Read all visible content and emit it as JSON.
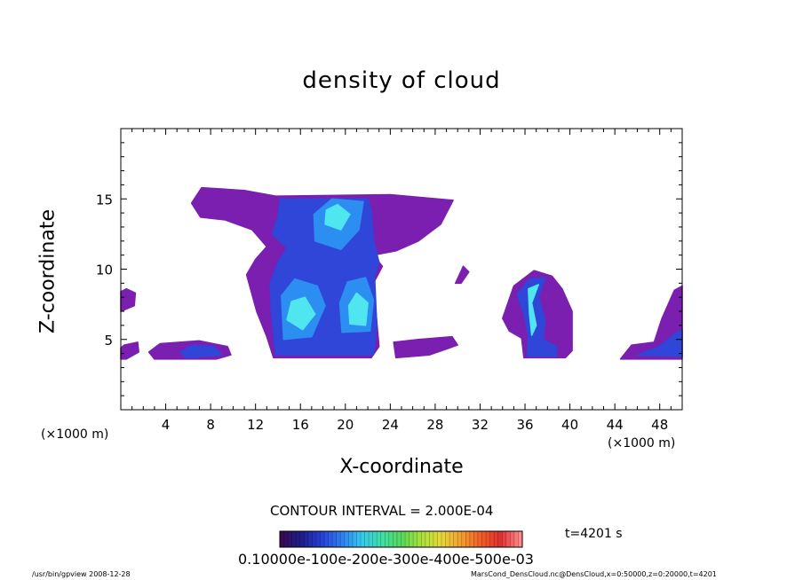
{
  "chart_data": {
    "type": "heatmap",
    "title": "density of cloud",
    "xlabel": "X-coordinate",
    "ylabel": "Z-coordinate",
    "x_unit_left": "(×1000 m)",
    "x_unit_right": "(×1000 m)",
    "xlim": [
      0,
      50
    ],
    "ylim": [
      0,
      20
    ],
    "x_ticks": [
      "4",
      "8",
      "12",
      "16",
      "20",
      "24",
      "28",
      "32",
      "36",
      "40",
      "44",
      "48"
    ],
    "x_tick_values": [
      4,
      8,
      12,
      16,
      20,
      24,
      28,
      32,
      36,
      40,
      44,
      48
    ],
    "y_ticks": [
      "5",
      "10",
      "15"
    ],
    "y_tick_values": [
      5,
      10,
      15
    ],
    "contour_interval": "CONTOUR INTERVAL = 2.000E-04",
    "time_label": "t=4201 s",
    "colorbar_labels": "0.10000e-100e-200e-300e-400e-500e-03",
    "footer_left": "/usr/bin/gpview   2008-12-28",
    "footer_right": "MarsCond_DensCloud.nc@DensCloud,x=0:50000,z=0:20000,t=4201",
    "colors": {
      "low": "#7a1fb0",
      "mid_low": "#2f46d8",
      "mid": "#2c8ef0",
      "high": "#4fe6f0",
      "colorbar": [
        "#3a0a52",
        "#1c1f8c",
        "#2740d6",
        "#2e7ef2",
        "#35c8ee",
        "#3fe0a8",
        "#56d85a",
        "#a8e03a",
        "#e6d83a",
        "#f2a030",
        "#f06028",
        "#e03030",
        "#ff8a8a"
      ]
    },
    "regions": [
      {
        "level": "low",
        "polygon": [
          [
            6.3,
            14.7
          ],
          [
            7.2,
            15.8
          ],
          [
            11,
            15.6
          ],
          [
            13.8,
            15.2
          ],
          [
            24,
            15.3
          ],
          [
            29.6,
            14.9
          ],
          [
            28.5,
            13.2
          ],
          [
            26.5,
            12
          ],
          [
            24.5,
            11.3
          ],
          [
            22.5,
            11
          ],
          [
            23.3,
            10.2
          ],
          [
            22.5,
            9
          ],
          [
            23,
            4.5
          ],
          [
            22.3,
            3.7
          ],
          [
            13.6,
            3.7
          ],
          [
            13,
            5.2
          ],
          [
            12.1,
            7
          ],
          [
            11.2,
            9.6
          ],
          [
            12,
            10.7
          ],
          [
            13,
            11.6
          ],
          [
            11.7,
            12.8
          ],
          [
            9.3,
            13.5
          ],
          [
            7.1,
            13.7
          ]
        ]
      },
      {
        "level": "mid_low",
        "polygon": [
          [
            13.8,
            3.9
          ],
          [
            22.5,
            3.9
          ],
          [
            22.8,
            6
          ],
          [
            22.6,
            9.5
          ],
          [
            23,
            10.5
          ],
          [
            22.5,
            12
          ],
          [
            22.3,
            14.2
          ],
          [
            22,
            15
          ],
          [
            14.2,
            15
          ],
          [
            14,
            13.8
          ],
          [
            13.5,
            12.5
          ],
          [
            14.8,
            11.5
          ],
          [
            14,
            10.5
          ],
          [
            13.3,
            9
          ],
          [
            13.4,
            7
          ]
        ]
      },
      {
        "level": "mid",
        "polygon": [
          [
            14.5,
            5
          ],
          [
            17,
            5.2
          ],
          [
            18.2,
            7.4
          ],
          [
            17.5,
            8.8
          ],
          [
            15.5,
            9.3
          ],
          [
            14.3,
            8.1
          ]
        ]
      },
      {
        "level": "high",
        "polygon": [
          [
            14.8,
            6.4
          ],
          [
            16.2,
            5.7
          ],
          [
            17.3,
            6.8
          ],
          [
            16.4,
            8
          ],
          [
            15.2,
            7.7
          ]
        ]
      },
      {
        "level": "mid",
        "polygon": [
          [
            19.7,
            5.5
          ],
          [
            22.2,
            5.6
          ],
          [
            22.5,
            7.8
          ],
          [
            21.8,
            9.4
          ],
          [
            20.2,
            9.1
          ],
          [
            19.5,
            7.6
          ]
        ]
      },
      {
        "level": "high",
        "polygon": [
          [
            20.4,
            6.1
          ],
          [
            21.8,
            6
          ],
          [
            22,
            7.6
          ],
          [
            21,
            8.3
          ],
          [
            20.3,
            7.4
          ]
        ]
      },
      {
        "level": "mid",
        "polygon": [
          [
            17.3,
            12
          ],
          [
            19.6,
            11.4
          ],
          [
            21.2,
            12.8
          ],
          [
            21.6,
            14.8
          ],
          [
            18.8,
            15
          ],
          [
            17.2,
            13.9
          ]
        ]
      },
      {
        "level": "high",
        "polygon": [
          [
            18.2,
            13.2
          ],
          [
            19.6,
            12.8
          ],
          [
            20.4,
            13.9
          ],
          [
            19.3,
            14.6
          ],
          [
            18.3,
            14.2
          ]
        ]
      },
      {
        "level": "low",
        "polygon": [
          [
            2.5,
            4.1
          ],
          [
            3.5,
            4.7
          ],
          [
            7,
            4.9
          ],
          [
            9.5,
            4.5
          ],
          [
            9.8,
            3.9
          ],
          [
            8.5,
            3.6
          ],
          [
            3,
            3.6
          ]
        ]
      },
      {
        "level": "mid_low",
        "polygon": [
          [
            5.3,
            4.1
          ],
          [
            6.4,
            4.6
          ],
          [
            8.3,
            4.5
          ],
          [
            9,
            3.9
          ],
          [
            5.8,
            3.7
          ]
        ]
      },
      {
        "level": "low",
        "polygon": [
          [
            0,
            7
          ],
          [
            1.2,
            7.4
          ],
          [
            1.3,
            8.3
          ],
          [
            0.5,
            8.6
          ],
          [
            0,
            8.4
          ]
        ]
      },
      {
        "level": "low",
        "polygon": [
          [
            0,
            3.6
          ],
          [
            0.5,
            3.6
          ],
          [
            1.6,
            4.1
          ],
          [
            1.5,
            4.8
          ],
          [
            0.3,
            4.6
          ],
          [
            0,
            4.4
          ]
        ]
      },
      {
        "level": "low",
        "polygon": [
          [
            24.5,
            3.7
          ],
          [
            27.5,
            3.9
          ],
          [
            30,
            4.6
          ],
          [
            29.5,
            5.2
          ],
          [
            26.5,
            5
          ],
          [
            24.3,
            4.8
          ]
        ]
      },
      {
        "level": "low",
        "polygon": [
          [
            34,
            6.5
          ],
          [
            35,
            8.8
          ],
          [
            36.8,
            9.9
          ],
          [
            38.4,
            9.5
          ],
          [
            39.3,
            8.6
          ],
          [
            40.2,
            7
          ],
          [
            40.2,
            4.2
          ],
          [
            39.6,
            3.7
          ],
          [
            35.9,
            3.7
          ],
          [
            35.7,
            5.1
          ],
          [
            34.6,
            5.6
          ]
        ]
      },
      {
        "level": "mid_low",
        "polygon": [
          [
            35.3,
            8.2
          ],
          [
            36.4,
            9.3
          ],
          [
            37.8,
            9.4
          ],
          [
            37.2,
            8
          ],
          [
            37.8,
            6.4
          ],
          [
            37.6,
            5
          ],
          [
            38.8,
            4.5
          ],
          [
            38.8,
            3.8
          ],
          [
            36.2,
            3.8
          ],
          [
            36.3,
            5.3
          ],
          [
            35.9,
            6.8
          ]
        ]
      },
      {
        "level": "high",
        "polygon": [
          [
            36.3,
            8.6
          ],
          [
            37.2,
            8.9
          ],
          [
            36.6,
            7.6
          ],
          [
            37,
            6
          ],
          [
            36.6,
            5.3
          ],
          [
            36.4,
            6.8
          ]
        ]
      },
      {
        "level": "low",
        "polygon": [
          [
            29.8,
            9
          ],
          [
            30.5,
            10.2
          ],
          [
            31,
            9.8
          ],
          [
            30.3,
            9
          ]
        ]
      },
      {
        "level": "low",
        "polygon": [
          [
            44.5,
            3.6
          ],
          [
            45.5,
            4.6
          ],
          [
            47.5,
            4.8
          ],
          [
            48.2,
            6.5
          ],
          [
            49.3,
            8.5
          ],
          [
            50,
            8.8
          ],
          [
            50,
            3.6
          ]
        ]
      },
      {
        "level": "mid_low",
        "polygon": [
          [
            46,
            3.9
          ],
          [
            48,
            4.5
          ],
          [
            49.2,
            5.3
          ],
          [
            50,
            5.7
          ],
          [
            50,
            3.8
          ]
        ]
      }
    ]
  }
}
